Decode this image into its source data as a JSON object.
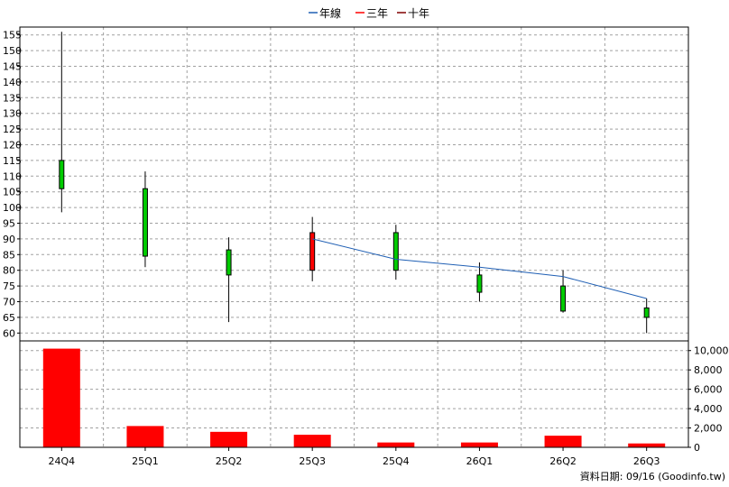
{
  "chart_data": {
    "type": "candlestick",
    "legend": {
      "position": "top-center",
      "items": [
        {
          "label": "年線",
          "color": "#1f5fb4"
        },
        {
          "label": "三年",
          "color": "#ff0000"
        },
        {
          "label": "十年",
          "color": "#800000"
        }
      ]
    },
    "categories": [
      "24Q4",
      "25Q1",
      "25Q2",
      "25Q3",
      "25Q4",
      "26Q1",
      "26Q2",
      "26Q3"
    ],
    "price_axis": {
      "ticks": [
        "60",
        "65",
        "70",
        "75",
        "80",
        "85",
        "90",
        "95",
        "100",
        "105",
        "110",
        "115",
        "120",
        "125",
        "130",
        "135",
        "140",
        "145",
        "150",
        "155"
      ],
      "range": [
        57.5,
        157.5
      ]
    },
    "volume_axis": {
      "ticks": [
        "0",
        "2,000",
        "4,000",
        "6,000",
        "8,000",
        "10,000"
      ],
      "range": [
        0,
        11000
      ]
    },
    "candles": [
      {
        "open": 115.0,
        "close": 106.0,
        "high": 156.0,
        "low": 98.5,
        "color": "#00cc00"
      },
      {
        "open": 106.0,
        "close": 84.5,
        "high": 111.5,
        "low": 81.0,
        "color": "#00cc00"
      },
      {
        "open": 86.5,
        "close": 78.5,
        "high": 90.5,
        "low": 63.5,
        "color": "#00cc00"
      },
      {
        "open": 80.0,
        "close": 92.0,
        "high": 97.0,
        "low": 76.5,
        "color": "#ff0000"
      },
      {
        "open": 92.0,
        "close": 80.0,
        "high": 94.5,
        "low": 77.0,
        "color": "#00cc00"
      },
      {
        "open": 78.5,
        "close": 73.0,
        "high": 82.5,
        "low": 70.0,
        "color": "#00cc00"
      },
      {
        "open": 75.0,
        "close": 67.0,
        "high": 80.0,
        "low": 66.5,
        "color": "#00cc00"
      },
      {
        "open": 68.0,
        "close": 65.0,
        "high": 71.0,
        "low": 60.0,
        "color": "#00cc00"
      }
    ],
    "annual_line": [
      {
        "index": 3,
        "value": 90.0
      },
      {
        "index": 4,
        "value": 83.5
      },
      {
        "index": 5,
        "value": 81.0
      },
      {
        "index": 6,
        "value": 78.0
      },
      {
        "index": 7,
        "value": 71.0
      }
    ],
    "volume": [
      10200,
      2200,
      1600,
      1300,
      500,
      500,
      1200,
      400
    ],
    "volume_color": "#ff0000",
    "grid": true
  },
  "footer": {
    "text": "資料日期: 09/16  (Goodinfo.tw)"
  }
}
